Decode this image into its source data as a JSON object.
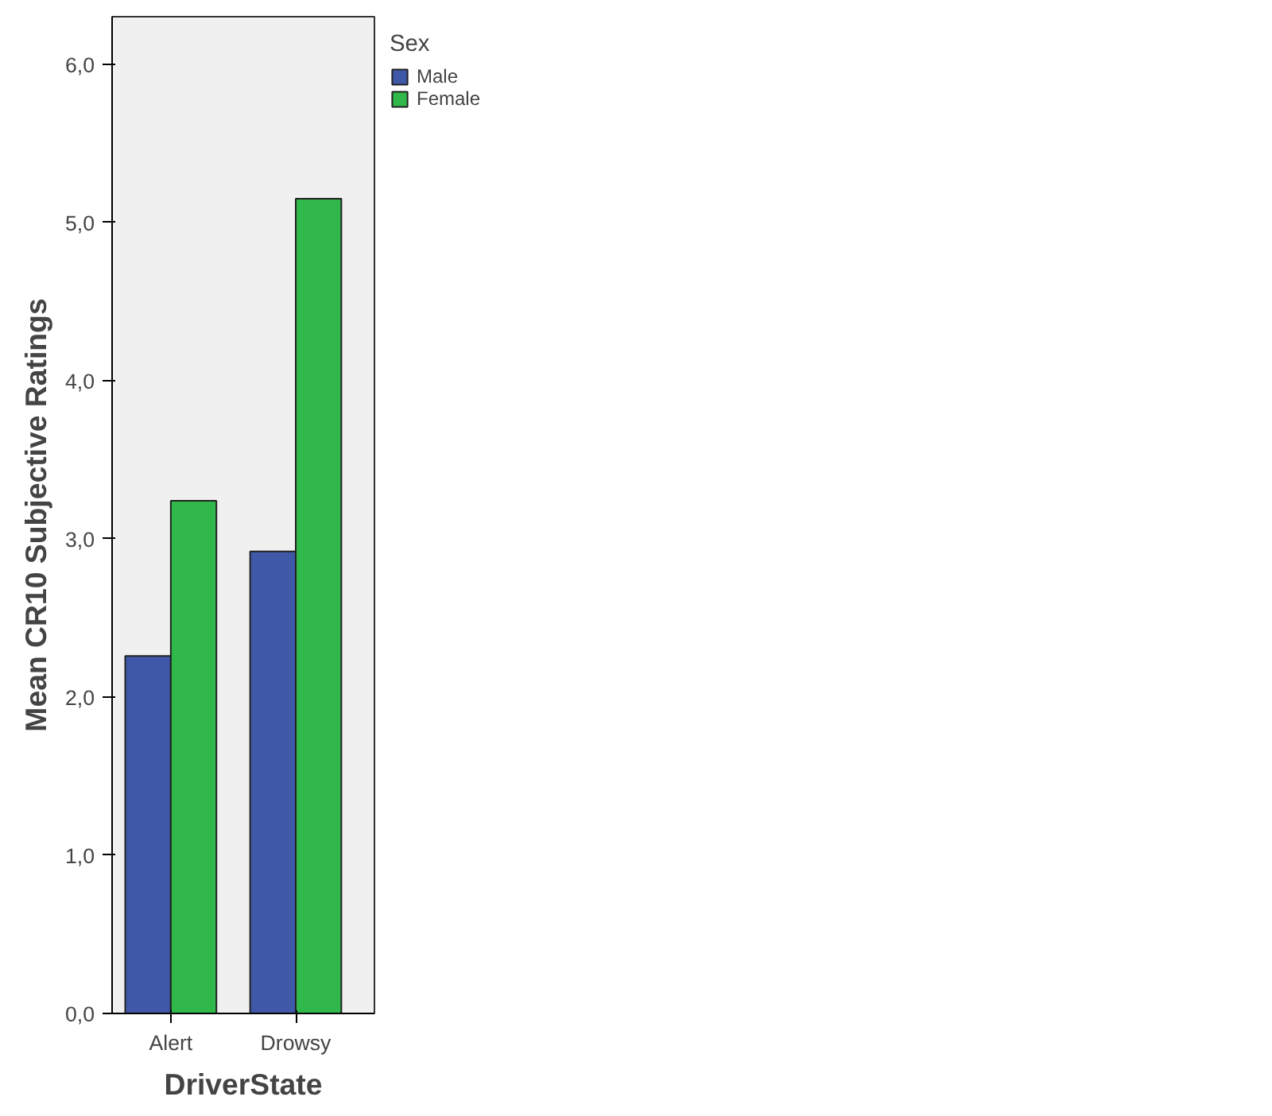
{
  "chart_data": {
    "type": "bar",
    "xlabel": "DriverState",
    "ylabel": "Mean CR10 Subjective Ratings",
    "legend_title": "Sex",
    "categories": [
      "Alert",
      "Drowsy"
    ],
    "series": [
      {
        "name": "Male",
        "color": "#3f58a8",
        "values": [
          2.26,
          2.92
        ]
      },
      {
        "name": "Female",
        "color": "#30b94a",
        "values": [
          3.24,
          5.15
        ]
      }
    ],
    "ylim": [
      0,
      6.3
    ],
    "yticks": [
      {
        "value": 0,
        "label": "0,0"
      },
      {
        "value": 1,
        "label": "1,0"
      },
      {
        "value": 2,
        "label": "2,0"
      },
      {
        "value": 3,
        "label": "3,0"
      },
      {
        "value": 4,
        "label": "4,0"
      },
      {
        "value": 5,
        "label": "5,0"
      },
      {
        "value": 6,
        "label": "6,0"
      }
    ],
    "grid": false,
    "legend": "top right"
  }
}
